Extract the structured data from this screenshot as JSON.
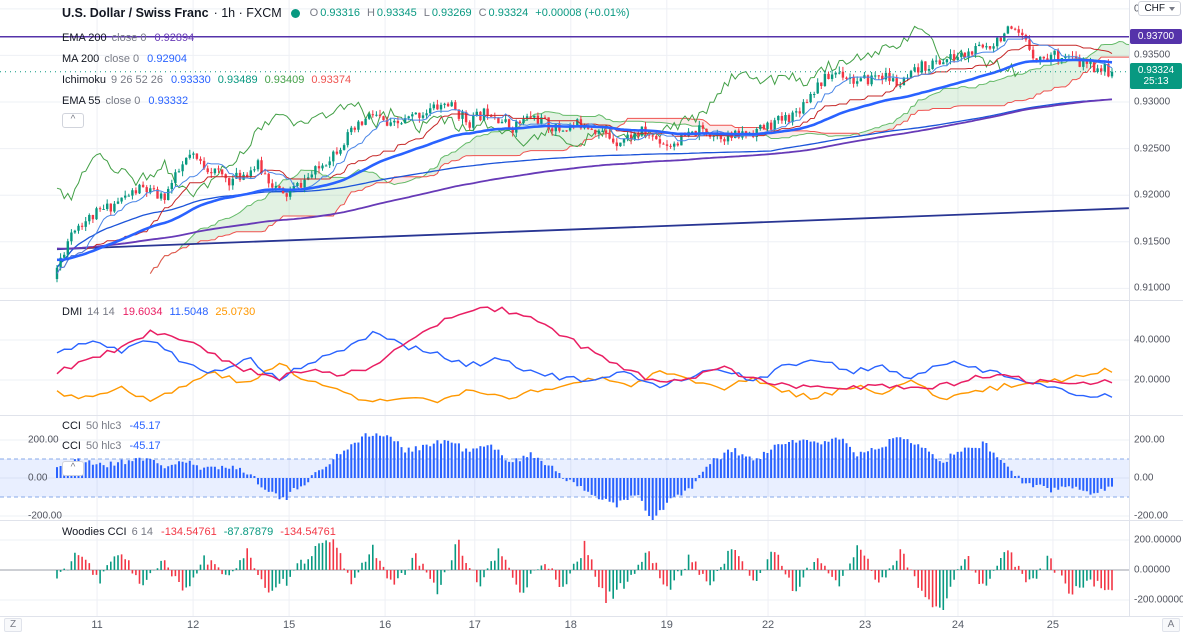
{
  "header": {
    "symbol": "U.S. Dollar / Swiss Franc",
    "suffix": "· 1h · FXCM",
    "ohlc": {
      "o_label": "O",
      "o": "0.93316",
      "h_label": "H",
      "h": "0.93345",
      "l_label": "L",
      "l": "0.93269",
      "c_label": "C",
      "c": "0.93324",
      "change": "+0.00008 (+0.01%)",
      "color": "#089981"
    }
  },
  "ui": {
    "collapse_icon": "^"
  },
  "legend": {
    "rows": [
      {
        "name": "EMA 200",
        "params": "close 0",
        "values": [
          {
            "text": "0.92894",
            "color": "#673ab7"
          }
        ]
      },
      {
        "name": "MA 200",
        "params": "close 0",
        "values": [
          {
            "text": "0.92904",
            "color": "#2962ff"
          }
        ]
      },
      {
        "name": "Ichimoku",
        "params": "9 26 52 26",
        "values": [
          {
            "text": "0.93330",
            "color": "#2962ff"
          },
          {
            "text": "0.93489",
            "color": "#089981"
          },
          {
            "text": "0.93409",
            "color": "#43a047"
          },
          {
            "text": "0.93374",
            "color": "#ef5350"
          }
        ]
      },
      {
        "name": "EMA 55",
        "params": "close 0",
        "values": [
          {
            "text": "0.93332",
            "color": "#2962ff"
          }
        ]
      }
    ]
  },
  "panes": {
    "dmi": {
      "title": "DMI",
      "params": "14 14",
      "values": [
        {
          "text": "19.6034",
          "color": "#e91e63"
        },
        {
          "text": "11.5048",
          "color": "#2962ff"
        },
        {
          "text": "25.0730",
          "color": "#ff9800"
        }
      ],
      "axis": [
        {
          "text": "40.0000",
          "v": 40
        },
        {
          "text": "20.0000",
          "v": 20
        }
      ]
    },
    "cci": {
      "rows": [
        {
          "title": "CCI",
          "params": "50 hlc3",
          "value": {
            "text": "-45.17",
            "color": "#2962ff"
          }
        },
        {
          "title": "CCI",
          "params": "50 hlc3",
          "value": {
            "text": "-45.17",
            "color": "#2962ff"
          }
        }
      ],
      "axis": [
        {
          "text": "200.00",
          "v": 200
        },
        {
          "text": "0.00",
          "v": 0
        },
        {
          "text": "-200.00",
          "v": -200
        }
      ]
    },
    "woodies": {
      "title": "Woodies CCI",
      "params": "6 14",
      "values": [
        {
          "text": "-134.54761",
          "color": "#f23645"
        },
        {
          "text": "-87.87879",
          "color": "#089981"
        },
        {
          "text": "-134.54761",
          "color": "#f23645"
        }
      ],
      "axis": [
        {
          "text": "200.00000",
          "v": 200
        },
        {
          "text": "0.00000",
          "v": 0
        },
        {
          "text": "-200.00000",
          "v": -200
        }
      ]
    }
  },
  "price_axis": {
    "currency": "CHF",
    "labels": [
      {
        "text": "0.94000",
        "p": 0.94
      },
      {
        "text": "0.93500",
        "p": 0.935
      },
      {
        "text": "0.93000",
        "p": 0.93
      },
      {
        "text": "0.92500",
        "p": 0.925
      },
      {
        "text": "0.92000",
        "p": 0.92
      },
      {
        "text": "0.91500",
        "p": 0.915
      },
      {
        "text": "0.91000",
        "p": 0.91
      }
    ],
    "line_badge": {
      "text": "0.93700",
      "p": 0.937,
      "color": "#5533aa"
    },
    "last_badge": {
      "text": "0.93324",
      "countdown": "25:13",
      "p": 0.93324,
      "color": "#089981"
    }
  },
  "time_axis": {
    "ticks": [
      {
        "label": "11",
        "t": 0.038
      },
      {
        "label": "12",
        "t": 0.129
      },
      {
        "label": "15",
        "t": 0.22
      },
      {
        "label": "16",
        "t": 0.311
      },
      {
        "label": "17",
        "t": 0.396
      },
      {
        "label": "18",
        "t": 0.487
      },
      {
        "label": "19",
        "t": 0.578
      },
      {
        "label": "22",
        "t": 0.674
      },
      {
        "label": "23",
        "t": 0.766
      },
      {
        "label": "24",
        "t": 0.854
      },
      {
        "label": "25",
        "t": 0.944
      }
    ],
    "left_button": "Z",
    "right_button": "A"
  },
  "chart_data": {
    "type": "candlestick",
    "title": "U.S. Dollar / Swiss Franc 1h (FXCM)",
    "price_range": [
      0.90875,
      0.94095
    ],
    "ohlc_last": {
      "open": 0.93316,
      "high": 0.93345,
      "low": 0.93269,
      "close": 0.93324
    },
    "price_anchors": [
      [
        0,
        0.9122
      ],
      [
        0.015,
        0.9165
      ],
      [
        0.05,
        0.9188
      ],
      [
        0.08,
        0.9208
      ],
      [
        0.1,
        0.9196
      ],
      [
        0.125,
        0.9242
      ],
      [
        0.14,
        0.9232
      ],
      [
        0.165,
        0.9215
      ],
      [
        0.19,
        0.9232
      ],
      [
        0.215,
        0.9198
      ],
      [
        0.245,
        0.9225
      ],
      [
        0.275,
        0.9262
      ],
      [
        0.3,
        0.9288
      ],
      [
        0.315,
        0.9272
      ],
      [
        0.345,
        0.9288
      ],
      [
        0.37,
        0.9299
      ],
      [
        0.39,
        0.9278
      ],
      [
        0.41,
        0.9292
      ],
      [
        0.43,
        0.9272
      ],
      [
        0.45,
        0.9285
      ],
      [
        0.475,
        0.927
      ],
      [
        0.5,
        0.9278
      ],
      [
        0.53,
        0.9258
      ],
      [
        0.555,
        0.9268
      ],
      [
        0.58,
        0.9254
      ],
      [
        0.61,
        0.927
      ],
      [
        0.64,
        0.9262
      ],
      [
        0.67,
        0.9272
      ],
      [
        0.7,
        0.9288
      ],
      [
        0.72,
        0.9318
      ],
      [
        0.74,
        0.9334
      ],
      [
        0.76,
        0.932
      ],
      [
        0.78,
        0.933
      ],
      [
        0.8,
        0.9318
      ],
      [
        0.82,
        0.9338
      ],
      [
        0.845,
        0.9346
      ],
      [
        0.865,
        0.9352
      ],
      [
        0.885,
        0.9362
      ],
      [
        0.9,
        0.9376
      ],
      [
        0.915,
        0.9368
      ],
      [
        0.93,
        0.9346
      ],
      [
        0.95,
        0.9352
      ],
      [
        0.97,
        0.9341
      ],
      [
        0.985,
        0.9338
      ],
      [
        1,
        0.93324
      ]
    ],
    "levels": {
      "horizontal_line": 0.937,
      "last_price": 0.93324
    },
    "trendline": {
      "t1": 0,
      "p1": 0.9142,
      "t2": 1.016,
      "p2": 0.9186
    },
    "overlays": {
      "ema55_last": 0.93332,
      "ema200_last": 0.92894,
      "ma200_last": 0.92904,
      "ichimoku_last": {
        "conversion": 0.9333,
        "base": 0.93489,
        "lead_a": 0.93409,
        "lead_b": 0.93374
      }
    },
    "dmi": {
      "range": [
        0,
        60
      ],
      "adx": [
        [
          0,
          24
        ],
        [
          0.03,
          30
        ],
        [
          0.06,
          36
        ],
        [
          0.09,
          44
        ],
        [
          0.12,
          40
        ],
        [
          0.15,
          32
        ],
        [
          0.18,
          25
        ],
        [
          0.21,
          21
        ],
        [
          0.24,
          26
        ],
        [
          0.27,
          22
        ],
        [
          0.3,
          27
        ],
        [
          0.33,
          38
        ],
        [
          0.36,
          48
        ],
        [
          0.39,
          54
        ],
        [
          0.42,
          56
        ],
        [
          0.45,
          50
        ],
        [
          0.48,
          42
        ],
        [
          0.51,
          33
        ],
        [
          0.54,
          25
        ],
        [
          0.57,
          19
        ],
        [
          0.6,
          21
        ],
        [
          0.63,
          26
        ],
        [
          0.66,
          21
        ],
        [
          0.69,
          17
        ],
        [
          0.72,
          18
        ],
        [
          0.75,
          16
        ],
        [
          0.78,
          17
        ],
        [
          0.81,
          15
        ],
        [
          0.84,
          17
        ],
        [
          0.87,
          21
        ],
        [
          0.9,
          22
        ],
        [
          0.93,
          19
        ],
        [
          0.96,
          17
        ],
        [
          1,
          19.6
        ]
      ],
      "plus_di": [
        [
          0,
          33
        ],
        [
          0.03,
          40
        ],
        [
          0.06,
          34
        ],
        [
          0.09,
          41
        ],
        [
          0.12,
          28
        ],
        [
          0.15,
          24
        ],
        [
          0.18,
          31
        ],
        [
          0.21,
          20
        ],
        [
          0.24,
          29
        ],
        [
          0.27,
          34
        ],
        [
          0.3,
          44
        ],
        [
          0.33,
          37
        ],
        [
          0.36,
          33
        ],
        [
          0.39,
          27
        ],
        [
          0.42,
          31
        ],
        [
          0.45,
          24
        ],
        [
          0.48,
          21
        ],
        [
          0.51,
          19
        ],
        [
          0.54,
          24
        ],
        [
          0.57,
          17
        ],
        [
          0.6,
          22
        ],
        [
          0.63,
          26
        ],
        [
          0.66,
          19
        ],
        [
          0.69,
          27
        ],
        [
          0.72,
          31
        ],
        [
          0.75,
          24
        ],
        [
          0.78,
          27
        ],
        [
          0.81,
          21
        ],
        [
          0.84,
          29
        ],
        [
          0.87,
          26
        ],
        [
          0.9,
          23
        ],
        [
          0.93,
          17
        ],
        [
          0.96,
          14
        ],
        [
          1,
          11.5
        ]
      ],
      "minus_di": [
        [
          0,
          14
        ],
        [
          0.03,
          11
        ],
        [
          0.06,
          17
        ],
        [
          0.09,
          9
        ],
        [
          0.12,
          17
        ],
        [
          0.15,
          24
        ],
        [
          0.18,
          17
        ],
        [
          0.21,
          29
        ],
        [
          0.24,
          19
        ],
        [
          0.27,
          14
        ],
        [
          0.3,
          9
        ],
        [
          0.33,
          11
        ],
        [
          0.36,
          9
        ],
        [
          0.39,
          14
        ],
        [
          0.42,
          11
        ],
        [
          0.45,
          14
        ],
        [
          0.48,
          17
        ],
        [
          0.51,
          21
        ],
        [
          0.54,
          17
        ],
        [
          0.57,
          24
        ],
        [
          0.6,
          19
        ],
        [
          0.63,
          15
        ],
        [
          0.66,
          21
        ],
        [
          0.69,
          14
        ],
        [
          0.72,
          11
        ],
        [
          0.75,
          17
        ],
        [
          0.78,
          14
        ],
        [
          0.81,
          19
        ],
        [
          0.84,
          11
        ],
        [
          0.87,
          14
        ],
        [
          0.9,
          17
        ],
        [
          0.93,
          19
        ],
        [
          0.96,
          21
        ],
        [
          1,
          25.1
        ]
      ],
      "last": {
        "adx": 19.6034,
        "plus_di": 11.5048,
        "minus_di": 25.073
      }
    },
    "cci": {
      "band": [
        -100,
        100
      ],
      "anchors": [
        [
          0,
          60
        ],
        [
          0.02,
          90
        ],
        [
          0.05,
          70
        ],
        [
          0.08,
          110
        ],
        [
          0.1,
          60
        ],
        [
          0.12,
          90
        ],
        [
          0.14,
          40
        ],
        [
          0.16,
          70
        ],
        [
          0.18,
          30
        ],
        [
          0.2,
          -60
        ],
        [
          0.215,
          -120
        ],
        [
          0.23,
          -40
        ],
        [
          0.25,
          40
        ],
        [
          0.27,
          140
        ],
        [
          0.29,
          220
        ],
        [
          0.31,
          230
        ],
        [
          0.33,
          150
        ],
        [
          0.35,
          170
        ],
        [
          0.37,
          200
        ],
        [
          0.39,
          140
        ],
        [
          0.41,
          170
        ],
        [
          0.43,
          90
        ],
        [
          0.45,
          120
        ],
        [
          0.47,
          60
        ],
        [
          0.49,
          -40
        ],
        [
          0.51,
          -90
        ],
        [
          0.53,
          -140
        ],
        [
          0.55,
          -90
        ],
        [
          0.565,
          -230
        ],
        [
          0.58,
          -120
        ],
        [
          0.6,
          -60
        ],
        [
          0.62,
          80
        ],
        [
          0.64,
          150
        ],
        [
          0.66,
          90
        ],
        [
          0.68,
          160
        ],
        [
          0.7,
          200
        ],
        [
          0.72,
          180
        ],
        [
          0.74,
          220
        ],
        [
          0.76,
          120
        ],
        [
          0.78,
          160
        ],
        [
          0.8,
          230
        ],
        [
          0.82,
          170
        ],
        [
          0.84,
          90
        ],
        [
          0.86,
          150
        ],
        [
          0.88,
          180
        ],
        [
          0.9,
          60
        ],
        [
          0.92,
          -40
        ],
        [
          0.94,
          -60
        ],
        [
          0.96,
          -50
        ],
        [
          0.98,
          -70
        ],
        [
          1,
          -45.17
        ]
      ],
      "last": -45.17
    },
    "woodies": {
      "anchors": [
        [
          0,
          -60
        ],
        [
          0.02,
          120
        ],
        [
          0.04,
          -80
        ],
        [
          0.06,
          150
        ],
        [
          0.08,
          -120
        ],
        [
          0.1,
          60
        ],
        [
          0.12,
          -150
        ],
        [
          0.14,
          80
        ],
        [
          0.16,
          -60
        ],
        [
          0.18,
          140
        ],
        [
          0.2,
          -180
        ],
        [
          0.22,
          -60
        ],
        [
          0.24,
          120
        ],
        [
          0.26,
          200
        ],
        [
          0.28,
          -80
        ],
        [
          0.3,
          150
        ],
        [
          0.32,
          -120
        ],
        [
          0.34,
          90
        ],
        [
          0.36,
          -140
        ],
        [
          0.38,
          180
        ],
        [
          0.4,
          -100
        ],
        [
          0.42,
          130
        ],
        [
          0.44,
          -160
        ],
        [
          0.46,
          70
        ],
        [
          0.48,
          -120
        ],
        [
          0.5,
          160
        ],
        [
          0.52,
          -200
        ],
        [
          0.54,
          -80
        ],
        [
          0.56,
          120
        ],
        [
          0.58,
          -140
        ],
        [
          0.6,
          90
        ],
        [
          0.62,
          -110
        ],
        [
          0.64,
          170
        ],
        [
          0.66,
          -90
        ],
        [
          0.68,
          130
        ],
        [
          0.7,
          -150
        ],
        [
          0.72,
          100
        ],
        [
          0.74,
          -120
        ],
        [
          0.76,
          180
        ],
        [
          0.78,
          -100
        ],
        [
          0.8,
          140
        ],
        [
          0.82,
          -170
        ],
        [
          0.84,
          -280
        ],
        [
          0.86,
          110
        ],
        [
          0.88,
          -130
        ],
        [
          0.9,
          150
        ],
        [
          0.92,
          -110
        ],
        [
          0.94,
          80
        ],
        [
          0.96,
          -160
        ],
        [
          0.98,
          -90
        ],
        [
          1,
          -134.55
        ]
      ],
      "last": -134.54761
    },
    "colors": {
      "up": "#089981",
      "down": "#f23645",
      "ema55": "#2962ff",
      "ema200": "#673ab7",
      "ma200": "#1c54d9",
      "tenkan": "#4985e7",
      "kijun": "#c62828",
      "chikou": "#43a047",
      "span_a": "#66bb6a",
      "span_b": "#ef5350",
      "cloud_up": "rgba(76,175,80,0.16)",
      "cloud_down": "rgba(239,83,80,0.12)",
      "trendline": "#283593",
      "hline": "#5533aa",
      "adx": "#e91e63",
      "plus_di": "#2962ff",
      "minus_di": "#ff9800",
      "cci_bar": "#2962ff",
      "cci_band": "rgba(41,98,255,0.10)",
      "cci_band_edge": "#87a9e8",
      "grid": "#eef0f5"
    }
  }
}
